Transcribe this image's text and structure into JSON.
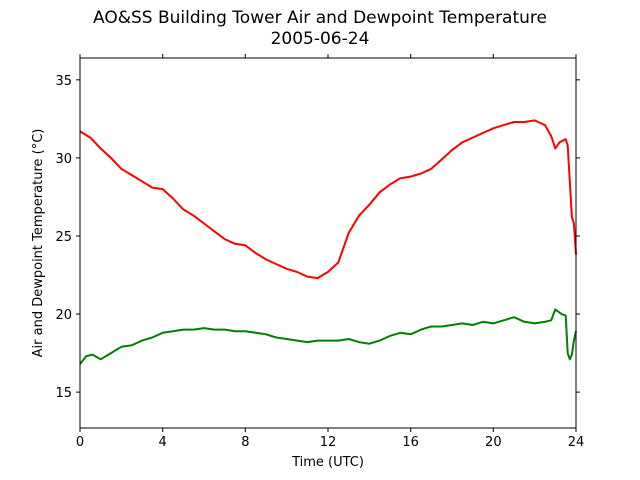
{
  "chart_data": {
    "type": "line",
    "title": "AO&SS Building Tower Air and Dewpoint Temperature",
    "subtitle": "2005-06-24",
    "xlabel": "Time (UTC)",
    "ylabel": "Air and Dewpoint Temperature (°C)",
    "xlim": [
      0,
      24
    ],
    "ylim": [
      12.7,
      36.4
    ],
    "xticks": [
      0,
      4,
      8,
      12,
      16,
      20,
      24
    ],
    "yticks": [
      15,
      20,
      25,
      30,
      35
    ],
    "grid": false,
    "legend": "none",
    "series": [
      {
        "color": "#ff0000",
        "x": [
          0,
          0.5,
          1,
          1.5,
          2,
          2.5,
          3,
          3.5,
          4,
          4.5,
          5,
          5.5,
          6,
          6.5,
          7,
          7.5,
          8,
          8.5,
          9,
          9.5,
          10,
          10.5,
          11,
          11.5,
          12,
          12.5,
          13,
          13.5,
          14,
          14.5,
          15,
          15.5,
          16,
          16.5,
          17,
          17.5,
          18,
          18.5,
          19,
          19.5,
          20,
          20.5,
          21,
          21.5,
          22,
          22.5,
          22.8,
          23,
          23.2,
          23.5,
          23.6,
          23.7,
          23.8,
          23.9,
          24
        ],
        "y": [
          31.7,
          31.3,
          30.6,
          30.0,
          29.3,
          28.9,
          28.5,
          28.1,
          28.0,
          27.4,
          26.7,
          26.3,
          25.8,
          25.3,
          24.8,
          24.5,
          24.4,
          23.9,
          23.5,
          23.2,
          22.9,
          22.7,
          22.4,
          22.3,
          22.7,
          23.3,
          25.2,
          26.3,
          27.0,
          27.8,
          28.3,
          28.7,
          28.8,
          29.0,
          29.3,
          29.9,
          30.5,
          31.0,
          31.3,
          31.6,
          31.9,
          32.1,
          32.3,
          32.3,
          32.4,
          32.1,
          31.4,
          30.6,
          31.0,
          31.2,
          30.8,
          28.5,
          26.2,
          25.8,
          23.8
        ]
      },
      {
        "color": "#008000",
        "x": [
          0,
          0.3,
          0.6,
          1,
          1.5,
          2,
          2.5,
          3,
          3.5,
          4,
          4.5,
          5,
          5.5,
          6,
          6.5,
          7,
          7.5,
          8,
          8.5,
          9,
          9.5,
          10,
          10.5,
          11,
          11.5,
          12,
          12.5,
          13,
          13.5,
          14,
          14.5,
          15,
          15.5,
          16,
          16.5,
          17,
          17.5,
          18,
          18.5,
          19,
          19.5,
          20,
          20.5,
          21,
          21.5,
          22,
          22.5,
          22.8,
          23,
          23.3,
          23.5,
          23.6,
          23.7,
          23.8,
          23.9,
          24
        ],
        "y": [
          16.8,
          17.3,
          17.4,
          17.1,
          17.5,
          17.9,
          18.0,
          18.3,
          18.5,
          18.8,
          18.9,
          19.0,
          19.0,
          19.1,
          19.0,
          19.0,
          18.9,
          18.9,
          18.8,
          18.7,
          18.5,
          18.4,
          18.3,
          18.2,
          18.3,
          18.3,
          18.3,
          18.4,
          18.2,
          18.1,
          18.3,
          18.6,
          18.8,
          18.7,
          19.0,
          19.2,
          19.2,
          19.3,
          19.4,
          19.3,
          19.5,
          19.4,
          19.6,
          19.8,
          19.5,
          19.4,
          19.5,
          19.6,
          20.3,
          20.0,
          19.9,
          17.5,
          17.1,
          17.4,
          18.3,
          18.9
        ]
      }
    ]
  }
}
